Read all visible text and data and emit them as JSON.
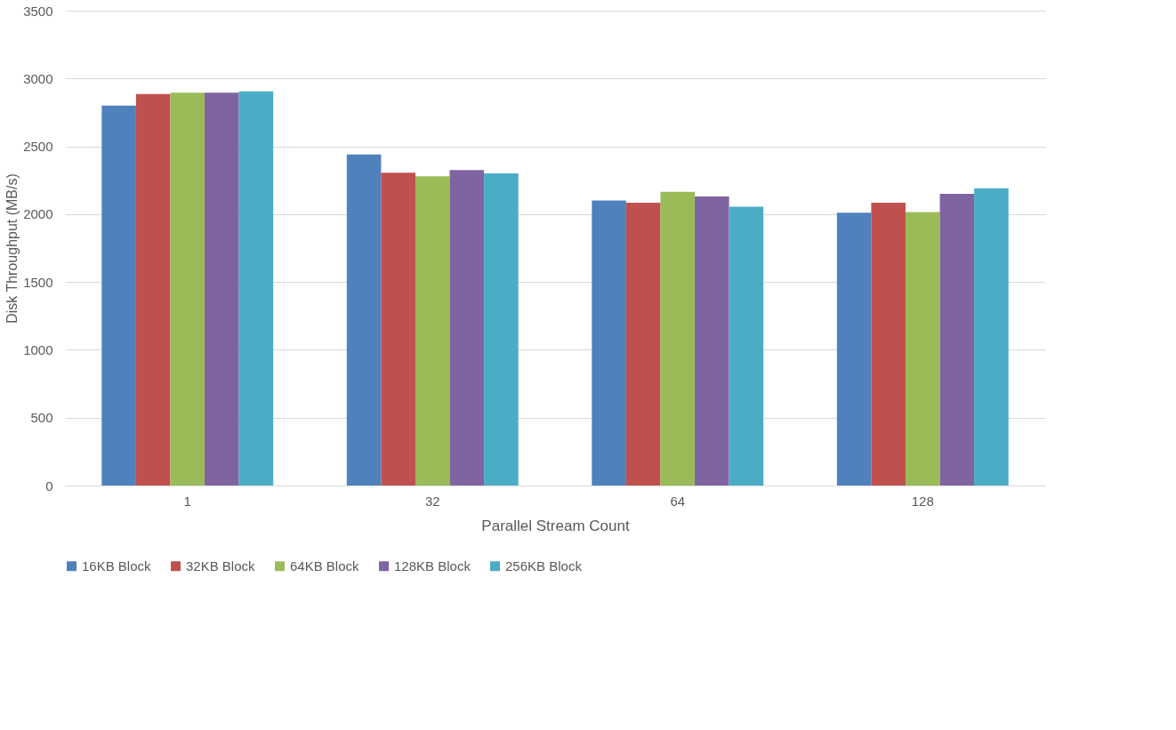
{
  "chart_data": {
    "type": "bar",
    "xlabel": "Parallel Stream Count",
    "ylabel": "Disk Throughput (MB/s)",
    "categories": [
      "1",
      "32",
      "64",
      "128"
    ],
    "series": [
      {
        "name": "16KB Block",
        "color": "#4f81bd",
        "values": [
          2800,
          2440,
          2100,
          2010
        ]
      },
      {
        "name": "32KB Block",
        "color": "#c0504d",
        "values": [
          2885,
          2305,
          2085,
          2085
        ]
      },
      {
        "name": "64KB Block",
        "color": "#9bbb59",
        "values": [
          2895,
          2280,
          2165,
          2015
        ]
      },
      {
        "name": "128KB Block",
        "color": "#8064a2",
        "values": [
          2895,
          2325,
          2130,
          2150
        ]
      },
      {
        "name": "256KB Block",
        "color": "#4bacc6",
        "values": [
          2905,
          2300,
          2055,
          2190
        ]
      }
    ],
    "ylim": [
      0,
      3500
    ],
    "yticks": [
      0,
      500,
      1000,
      1500,
      2000,
      2500,
      3000,
      3500
    ],
    "grid": "y",
    "legend": "bottom"
  }
}
